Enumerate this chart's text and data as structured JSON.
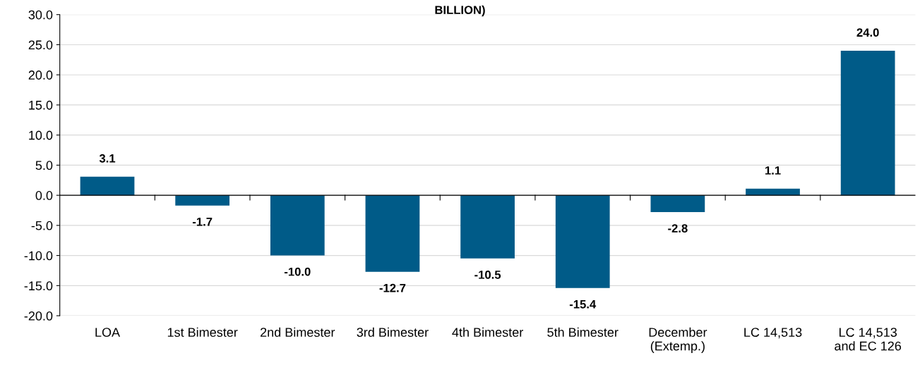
{
  "chart_data": {
    "type": "bar",
    "title": "BILLION)",
    "categories": [
      "LOA",
      "1st Bimester",
      "2nd Bimester",
      "3rd Bimester",
      "4th Bimester",
      "5th Bimester",
      "December\n(Extemp.)",
      "LC 14,513",
      "LC 14,513\nand EC 126"
    ],
    "values": [
      3.1,
      -1.7,
      -10.0,
      -12.7,
      -10.5,
      -15.4,
      -2.8,
      1.1,
      24.0
    ],
    "value_labels": [
      "3.1",
      "-1.7",
      "-10.0",
      "-12.7",
      "-10.5",
      "-15.4",
      "-2.8",
      "1.1",
      "24.0"
    ],
    "color": "#005b88",
    "ylim": [
      -20,
      30
    ],
    "yticks": [
      {
        "value": -20,
        "label": "-20.0"
      },
      {
        "value": -15,
        "label": "-15.0"
      },
      {
        "value": -10,
        "label": "-10.0"
      },
      {
        "value": -5,
        "label": "-5.0"
      },
      {
        "value": 0,
        "label": "0.0"
      },
      {
        "value": 5,
        "label": "5.0"
      },
      {
        "value": 10,
        "label": "10.0"
      },
      {
        "value": 15,
        "label": "15.0"
      },
      {
        "value": 20,
        "label": "20.0"
      },
      {
        "value": 25,
        "label": "25.0"
      },
      {
        "value": 30,
        "label": "30.0"
      }
    ],
    "grid": "y",
    "legend": false
  }
}
